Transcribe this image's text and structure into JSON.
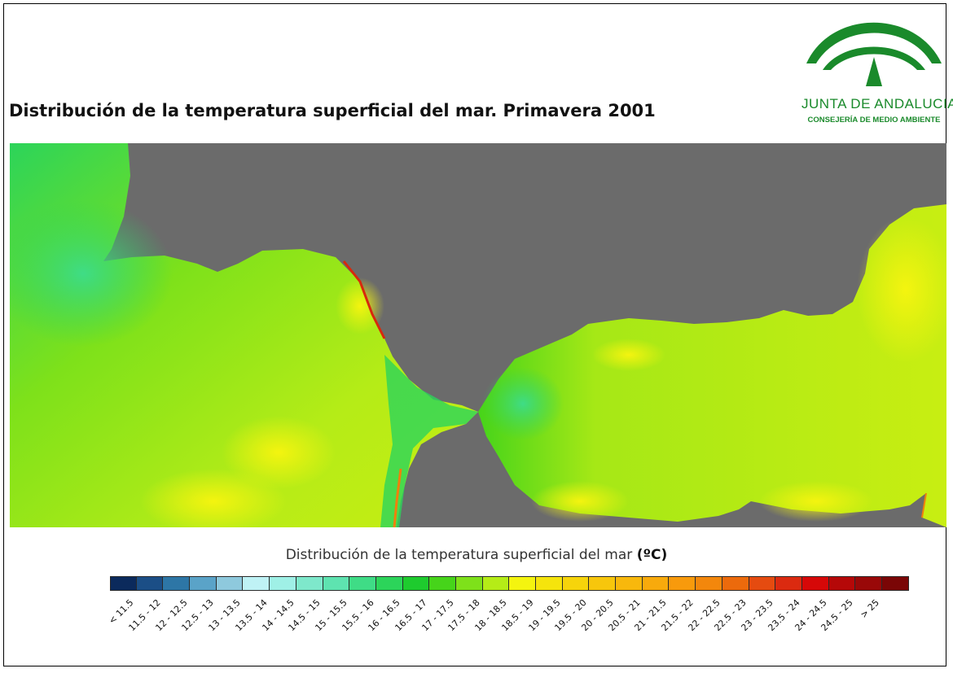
{
  "header": {
    "title": "Distribución de la temperatura superficial del mar. Primavera 2001"
  },
  "logo": {
    "line1": "JUNTA DE ANDALUCIA",
    "line2": "CONSEJERÍA DE MEDIO AMBIENTE",
    "color": "#1a8a2b"
  },
  "map": {
    "land_color": "#6b6b6b"
  },
  "legend": {
    "title": "Distribución de la temperatura superficial del mar ",
    "unit": "(ºC)",
    "classes": [
      {
        "label": "< 11.5",
        "color": "#0b2a5c"
      },
      {
        "label": "11.5 - 12",
        "color": "#1b4e86"
      },
      {
        "label": "12 - 12.5",
        "color": "#2d76a6"
      },
      {
        "label": "12.5 - 13",
        "color": "#5aa3c8"
      },
      {
        "label": "13 - 13.5",
        "color": "#8ec9dd"
      },
      {
        "label": "13.5 - 14",
        "color": "#bff2f5"
      },
      {
        "label": "14 - 14.5",
        "color": "#9ff0e6"
      },
      {
        "label": "14.5 - 15",
        "color": "#7ee8cb"
      },
      {
        "label": "15 - 15.5",
        "color": "#5ee3b0"
      },
      {
        "label": "15.5 - 16",
        "color": "#3fdc86"
      },
      {
        "label": "16 - 16.5",
        "color": "#2cd45a"
      },
      {
        "label": "16.5 - 17",
        "color": "#1ecb2e"
      },
      {
        "label": "17 - 17.5",
        "color": "#46d41a"
      },
      {
        "label": "17.5 - 18",
        "color": "#7ee11a"
      },
      {
        "label": "18 - 18.5",
        "color": "#b5ec17"
      },
      {
        "label": "18.5 - 19",
        "color": "#f4f40f"
      },
      {
        "label": "19 - 19.5",
        "color": "#f5e40c"
      },
      {
        "label": "19.5 - 20",
        "color": "#f6d40b"
      },
      {
        "label": "20 - 20.5",
        "color": "#f7c60c"
      },
      {
        "label": "20.5 - 21",
        "color": "#f8b80c"
      },
      {
        "label": "21 - 21.5",
        "color": "#f8aa0c"
      },
      {
        "label": "21.5 - 22",
        "color": "#f89a0c"
      },
      {
        "label": "22 - 22.5",
        "color": "#f3870c"
      },
      {
        "label": "22.5 - 23",
        "color": "#ec6a0c"
      },
      {
        "label": "23 - 23.5",
        "color": "#e54b10"
      },
      {
        "label": "23.5 - 24",
        "color": "#db2a10"
      },
      {
        "label": "24 - 24.5",
        "color": "#d60808"
      },
      {
        "label": "24.5 - 25",
        "color": "#b50808"
      },
      {
        "label": "> 25",
        "color": "#990808"
      },
      {
        "label": "",
        "color": "#7a0606"
      }
    ]
  }
}
